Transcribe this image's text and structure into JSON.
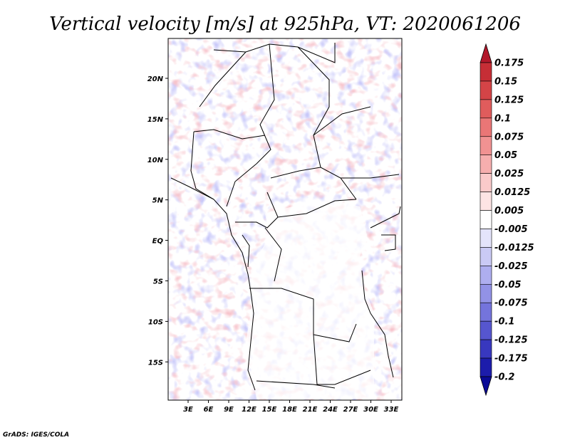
{
  "title": "Vertical velocity [m/s] at 925hPa, VT: 2020061206",
  "credit": "GrADS: IGES/COLA",
  "lat_ticks": [
    "20N",
    "15N",
    "10N",
    "5N",
    "EQ",
    "5S",
    "10S",
    "15S"
  ],
  "lon_ticks": [
    "3E",
    "6E",
    "9E",
    "12E",
    "15E",
    "18E",
    "21E",
    "24E",
    "27E",
    "30E",
    "33E"
  ],
  "colorbar": {
    "labels": [
      "0.175",
      "0.15",
      "0.125",
      "0.1",
      "0.075",
      "0.05",
      "0.025",
      "0.0125",
      "0.005",
      "-0.005",
      "-0.0125",
      "-0.025",
      "-0.05",
      "-0.075",
      "-0.1",
      "-0.125",
      "-0.175",
      "-0.2"
    ],
    "colors": [
      "#b2182b",
      "#c62e36",
      "#d44447",
      "#e05c5c",
      "#ea7676",
      "#f19292",
      "#f6aeae",
      "#facaca",
      "#fde4e4",
      "#ffffff",
      "#e4e4fb",
      "#cacaf5",
      "#aeaeef",
      "#9292e6",
      "#7474dc",
      "#5656cf",
      "#3838bf",
      "#1c1cab",
      "#0a0a96"
    ]
  }
}
